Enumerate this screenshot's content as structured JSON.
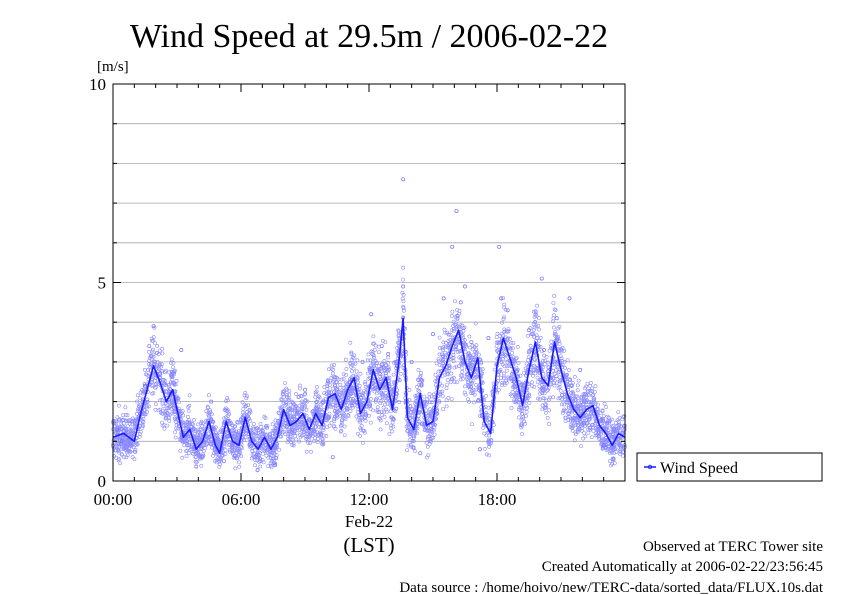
{
  "chart_data": {
    "type": "scatter",
    "title": "Wind Speed at 29.5m / 2006-02-22",
    "ylabel": "[m/s]",
    "xlabel": "(LST)",
    "date_label": "Feb-22",
    "ylim": [
      0,
      10
    ],
    "xlim": [
      "00:00",
      "24:00"
    ],
    "y_ticks": [
      "0",
      "5",
      "10"
    ],
    "x_ticks": [
      "00:00",
      "06:00",
      "12:00",
      "18:00"
    ],
    "grid": true,
    "legend_position": "right",
    "series": [
      {
        "name": "Wind Speed",
        "color": "#1a1aff",
        "x_hours": [
          0.0,
          0.5,
          1.0,
          1.3,
          1.6,
          1.9,
          2.2,
          2.5,
          2.8,
          3.0,
          3.3,
          3.6,
          3.9,
          4.2,
          4.5,
          4.8,
          5.0,
          5.3,
          5.6,
          5.9,
          6.2,
          6.5,
          6.8,
          7.1,
          7.4,
          7.7,
          8.0,
          8.3,
          8.6,
          8.9,
          9.2,
          9.5,
          9.8,
          10.1,
          10.4,
          10.7,
          11.0,
          11.3,
          11.6,
          11.9,
          12.2,
          12.5,
          12.8,
          13.1,
          13.4,
          13.6,
          13.8,
          14.1,
          14.4,
          14.7,
          15.0,
          15.3,
          15.6,
          15.9,
          16.2,
          16.5,
          16.8,
          17.1,
          17.4,
          17.7,
          18.0,
          18.3,
          18.6,
          18.9,
          19.2,
          19.5,
          19.8,
          20.1,
          20.4,
          20.7,
          21.0,
          21.3,
          21.6,
          21.9,
          22.2,
          22.5,
          22.8,
          23.1,
          23.4,
          23.7,
          24.0
        ],
        "values": [
          1.1,
          1.2,
          1.0,
          1.7,
          2.3,
          2.9,
          2.5,
          2.0,
          2.3,
          1.8,
          1.1,
          1.3,
          0.8,
          1.0,
          1.5,
          0.9,
          0.7,
          1.5,
          1.0,
          0.9,
          1.6,
          1.0,
          0.8,
          1.1,
          0.8,
          1.1,
          1.8,
          1.4,
          1.5,
          1.7,
          1.3,
          1.7,
          1.4,
          2.1,
          2.2,
          1.8,
          2.3,
          2.6,
          1.7,
          2.0,
          2.8,
          2.3,
          2.6,
          1.8,
          3.0,
          4.1,
          1.6,
          1.3,
          2.2,
          1.4,
          1.5,
          2.6,
          2.9,
          3.4,
          3.8,
          3.0,
          2.6,
          3.1,
          1.5,
          1.2,
          2.9,
          3.6,
          3.1,
          2.6,
          1.9,
          2.8,
          3.5,
          2.6,
          2.4,
          3.5,
          2.8,
          2.2,
          1.8,
          1.6,
          1.8,
          1.9,
          1.4,
          1.2,
          0.9,
          1.2,
          1.1
        ],
        "scatter_x_hours": [
          0.2,
          0.4,
          0.9,
          1.5,
          1.7,
          1.9,
          2.0,
          2.7,
          3.2,
          4.6,
          5.2,
          5.6,
          7.6,
          9.0,
          10.3,
          11.1,
          11.7,
          12.1,
          12.6,
          12.9,
          13.3,
          13.6,
          13.6,
          14.0,
          14.4,
          15.0,
          15.5,
          15.9,
          16.1,
          16.3,
          16.5,
          16.8,
          17.2,
          17.6,
          18.1,
          18.2,
          18.5,
          18.8,
          19.5,
          20.1,
          20.2,
          20.8,
          21.4,
          21.9,
          23.0
        ],
        "scatter_values": [
          1.3,
          1.0,
          1.5,
          2.4,
          3.4,
          3.9,
          2.6,
          2.2,
          3.3,
          2.0,
          0.5,
          1.4,
          0.4,
          2.3,
          0.6,
          2.5,
          3.0,
          4.2,
          3.4,
          3.2,
          2.9,
          7.6,
          4.9,
          3.0,
          0.7,
          3.7,
          4.6,
          5.9,
          6.8,
          4.5,
          4.9,
          3.5,
          0.8,
          3.6,
          5.9,
          4.6,
          4.3,
          2.5,
          3.8,
          5.1,
          3.3,
          4.1,
          4.6,
          2.8,
          0.9
        ]
      }
    ]
  },
  "footer": {
    "line1": "Observed at TERC Tower site",
    "line2": "Created Automatically at 2006-02-22/23:56:45",
    "line3": "Data source : /home/hoivo/new/TERC-data/sorted_data/FLUX.10s.dat"
  }
}
